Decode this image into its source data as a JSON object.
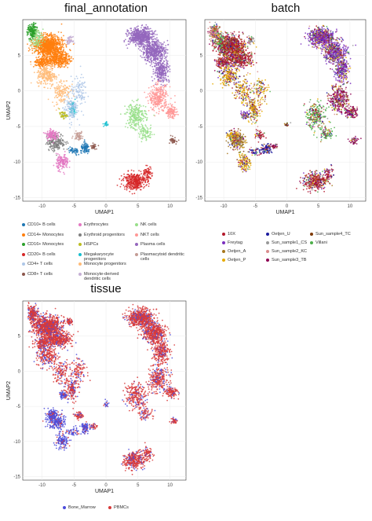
{
  "chart_data": [
    {
      "type": "scatter",
      "title": "final_annotation",
      "xlabel": "UMAP1",
      "ylabel": "UMAP2",
      "xlim": [
        -13,
        12.5
      ],
      "ylim": [
        -15.5,
        10
      ],
      "xticks": [
        -10,
        -5,
        0,
        5,
        10
      ],
      "yticks": [
        -15,
        -10,
        -5,
        0,
        5
      ],
      "grid": true,
      "legend_position": "bottom",
      "series": [
        {
          "name": "CD10+ B cells",
          "color": "#1F77B4"
        },
        {
          "name": "CD14+ Monocytes",
          "color": "#FF7F0E"
        },
        {
          "name": "CD16+ Monocytes",
          "color": "#2CA02C"
        },
        {
          "name": "CD20+ B cells",
          "color": "#D62728"
        },
        {
          "name": "CD4+ T cells",
          "color": "#AEC7E8"
        },
        {
          "name": "CD8+ T cells",
          "color": "#8C564B"
        },
        {
          "name": "Erythrocytes",
          "color": "#E377C2"
        },
        {
          "name": "Erythroid progenitors",
          "color": "#7F7F7F"
        },
        {
          "name": "HSPCs",
          "color": "#BCBD22"
        },
        {
          "name": "Megakaryocyte progenitors",
          "color": "#17BECF"
        },
        {
          "name": "Monocyte progenitors",
          "color": "#FFBB78"
        },
        {
          "name": "Monocyte-derived dendritic cells",
          "color": "#C5B0D5"
        },
        {
          "name": "NK cells",
          "color": "#98DF8A"
        },
        {
          "name": "NKT cells",
          "color": "#FF9896"
        },
        {
          "name": "Plasma cells",
          "color": "#9467BD"
        },
        {
          "name": "Plasmacytoid dendritic cells",
          "color": "#C49C94"
        }
      ]
    },
    {
      "type": "scatter",
      "title": "batch",
      "xlabel": "UMAP1",
      "ylabel": "",
      "xlim": [
        -13,
        12.5
      ],
      "ylim": [
        -15.5,
        10
      ],
      "xticks": [
        -10,
        -5,
        0,
        5,
        10
      ],
      "yticks": [
        -15,
        -10,
        -5,
        0,
        5
      ],
      "grid": true,
      "legend_position": "bottom",
      "series": [
        {
          "name": "10X",
          "color": "#B2182B"
        },
        {
          "name": "Freytag",
          "color": "#7B2FBE"
        },
        {
          "name": "Oetjen_A",
          "color": "#A6761D"
        },
        {
          "name": "Oetjen_P",
          "color": "#E6AB02"
        },
        {
          "name": "Oetjen_U",
          "color": "#1B1B9E"
        },
        {
          "name": "Sun_sample1_CS",
          "color": "#999999"
        },
        {
          "name": "Sun_sample2_KC",
          "color": "#D98C8C"
        },
        {
          "name": "Sun_sample3_TB",
          "color": "#8E0152"
        },
        {
          "name": "Sun_sample4_TC",
          "color": "#7F3B08"
        },
        {
          "name": "Villani",
          "color": "#4DAF4A"
        }
      ]
    },
    {
      "type": "scatter",
      "title": "tissue",
      "xlabel": "UMAP1",
      "ylabel": "UMAP2",
      "xlim": [
        -13,
        12.5
      ],
      "ylim": [
        -15.5,
        10
      ],
      "xticks": [
        -10,
        -5,
        0,
        5,
        10
      ],
      "yticks": [
        -15,
        -10,
        -5,
        0,
        5
      ],
      "grid": true,
      "legend_position": "bottom",
      "series": [
        {
          "name": "Bone_Marrow",
          "color": "#4C4CDB"
        },
        {
          "name": "PBMCs",
          "color": "#D83A3A"
        }
      ]
    }
  ]
}
